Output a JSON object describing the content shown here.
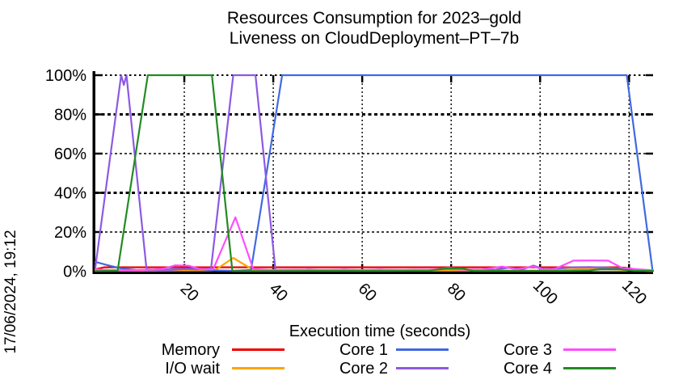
{
  "header": {
    "title_line1": "Resources Consumption for 2023–gold",
    "title_line2": "Liveness on CloudDeployment–PT–7b"
  },
  "timestamp": "17/06/2024, 19:12",
  "chart_data": {
    "type": "line",
    "title": "Resources Consumption for 2023–gold / Liveness on CloudDeployment–PT–7b",
    "xlabel": "Execution time (seconds)",
    "ylabel": "",
    "grid": true,
    "legend_position": "bottom",
    "x_axis": {
      "min": 0,
      "max": 125.4,
      "ticks": [
        20,
        40,
        60,
        80,
        100,
        120
      ]
    },
    "y_axis": {
      "min": 0,
      "max": 100,
      "ticks": [
        {
          "v": 0,
          "label": "0%",
          "weight": "none"
        },
        {
          "v": 20,
          "label": "20%",
          "weight": "light"
        },
        {
          "v": 40,
          "label": "40%",
          "weight": "heavy"
        },
        {
          "v": 60,
          "label": "60%",
          "weight": "light"
        },
        {
          "v": 80,
          "label": "80%",
          "weight": "heavy"
        },
        {
          "v": 100,
          "label": "100%",
          "weight": "medium"
        }
      ]
    },
    "series": [
      {
        "name": "Memory",
        "color": "#ee0000",
        "points": [
          [
            0,
            1
          ],
          [
            2,
            2
          ],
          [
            117,
            2
          ],
          [
            119,
            1.8
          ],
          [
            124,
            0.1
          ],
          [
            125.4,
            0.1
          ]
        ]
      },
      {
        "name": "I/O wait",
        "color": "#ffa500",
        "points": [
          [
            0,
            0.3
          ],
          [
            12,
            0.3
          ],
          [
            20,
            0.4
          ],
          [
            25,
            0.4
          ],
          [
            27,
            0.7
          ],
          [
            31,
            6.8
          ],
          [
            35.5,
            0.6
          ],
          [
            40,
            0.3
          ],
          [
            70,
            0.3
          ],
          [
            100,
            0.4
          ],
          [
            103,
            0.8
          ],
          [
            109,
            1
          ],
          [
            115,
            1
          ],
          [
            118,
            0.8
          ],
          [
            121,
            0.4
          ],
          [
            125.4,
            0.1
          ]
        ]
      },
      {
        "name": "Core 1",
        "color": "#4169e1",
        "points": [
          [
            0,
            4.8
          ],
          [
            2.5,
            3.2
          ],
          [
            6,
            1.3
          ],
          [
            9,
            0.7
          ],
          [
            12,
            0.6
          ],
          [
            15,
            0.8
          ],
          [
            18,
            1
          ],
          [
            21,
            1.3
          ],
          [
            24,
            0.9
          ],
          [
            27,
            0.4
          ],
          [
            31,
            0.3
          ],
          [
            35,
            0.6
          ],
          [
            42,
            100
          ],
          [
            119.5,
            100
          ],
          [
            125.3,
            0.3
          ]
        ]
      },
      {
        "name": "Core 2",
        "color": "#8d59e3",
        "points": [
          [
            0,
            2
          ],
          [
            5.8,
            100
          ],
          [
            6.4,
            95
          ],
          [
            7,
            100
          ],
          [
            11.5,
            1
          ],
          [
            14,
            0.6
          ],
          [
            17,
            0.6
          ],
          [
            20,
            1.1
          ],
          [
            23,
            0.9
          ],
          [
            26,
            1.4
          ],
          [
            31,
            100
          ],
          [
            36,
            100
          ],
          [
            40.5,
            0.6
          ],
          [
            44,
            0.4
          ],
          [
            48,
            0.9
          ],
          [
            52,
            0.5
          ],
          [
            56,
            0.9
          ],
          [
            60,
            0.5
          ],
          [
            64,
            0.9
          ],
          [
            68,
            0.5
          ],
          [
            72,
            0.8
          ],
          [
            76,
            0.6
          ],
          [
            79.5,
            1.9
          ],
          [
            82,
            1
          ],
          [
            86,
            0.5
          ],
          [
            90,
            0.8
          ],
          [
            93,
            1.8
          ],
          [
            96,
            0.9
          ],
          [
            98.5,
            2.9
          ],
          [
            101,
            0.9
          ],
          [
            104,
            1.4
          ],
          [
            107,
            2
          ],
          [
            111,
            2.1
          ],
          [
            115,
            1.9
          ],
          [
            118.5,
            1.2
          ],
          [
            122,
            0.6
          ],
          [
            125.4,
            0.4
          ]
        ]
      },
      {
        "name": "Core 3",
        "color": "#ff4dff",
        "points": [
          [
            0,
            1
          ],
          [
            3,
            0.6
          ],
          [
            7,
            0.5
          ],
          [
            10,
            0.6
          ],
          [
            13,
            0.9
          ],
          [
            15.5,
            1.4
          ],
          [
            18,
            3
          ],
          [
            21,
            2.8
          ],
          [
            23.5,
            1.1
          ],
          [
            26.5,
            1
          ],
          [
            31.5,
            27.5
          ],
          [
            35.5,
            1.1
          ],
          [
            39,
            0.7
          ],
          [
            45,
            0.8
          ],
          [
            50,
            0.7
          ],
          [
            55,
            0.8
          ],
          [
            60,
            0.7
          ],
          [
            65,
            0.8
          ],
          [
            70,
            0.7
          ],
          [
            75,
            0.8
          ],
          [
            79,
            1.1
          ],
          [
            83,
            0.8
          ],
          [
            87,
            0.9
          ],
          [
            91.5,
            2.4
          ],
          [
            94.5,
            1
          ],
          [
            98.5,
            2.4
          ],
          [
            101,
            0.7
          ],
          [
            103.5,
            1.3
          ],
          [
            107.5,
            5.4
          ],
          [
            111,
            5.5
          ],
          [
            115.3,
            5.4
          ],
          [
            118.5,
            1.6
          ],
          [
            122,
            1
          ],
          [
            125.4,
            0.5
          ]
        ]
      },
      {
        "name": "Core 4",
        "color": "#228b22",
        "points": [
          [
            0,
            0.1
          ],
          [
            5,
            0.2
          ],
          [
            11.8,
            100
          ],
          [
            26.2,
            100
          ],
          [
            30.8,
            0.1
          ],
          [
            35,
            0.1
          ],
          [
            50,
            0.15
          ],
          [
            65,
            0.15
          ],
          [
            75,
            0.3
          ],
          [
            79,
            1.4
          ],
          [
            82.5,
            1.4
          ],
          [
            85,
            0.15
          ],
          [
            95,
            0.15
          ],
          [
            105,
            0.2
          ],
          [
            111,
            0.4
          ],
          [
            113.5,
            1
          ],
          [
            118,
            1
          ],
          [
            121,
            0.3
          ],
          [
            125.4,
            0.15
          ]
        ]
      }
    ]
  }
}
